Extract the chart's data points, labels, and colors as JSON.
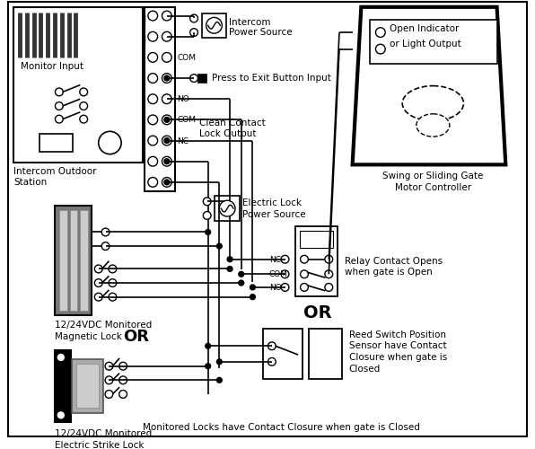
{
  "bg_color": "#ffffff",
  "labels": {
    "monitor_input": "Monitor Input",
    "intercom_outdoor_1": "Intercom Outdoor",
    "intercom_outdoor_2": "Station",
    "intercom_power_1": "Intercom",
    "intercom_power_2": "Power Source",
    "press_exit": "Press to Exit Button Input",
    "clean_contact_1": "Clean Contact",
    "clean_contact_2": "Lock Output",
    "electric_lock_1": "Electric Lock",
    "electric_lock_2": "Power Source",
    "magnetic_lock_1": "12/24VDC Monitored",
    "magnetic_lock_2": "Magnetic Lock",
    "or1": "OR",
    "electric_strike_1": "12/24VDC Monitored",
    "electric_strike_2": "Electric Strike Lock",
    "swing_gate_1": "Swing or Sliding Gate",
    "swing_gate_2": "Motor Controller",
    "open_ind_1": "Open Indicator",
    "open_ind_2": "or Light Output",
    "relay_1": "Relay Contact Opens",
    "relay_2": "when gate is Open",
    "or2": "OR",
    "reed_1": "Reed Switch Position",
    "reed_2": "Sensor have Contact",
    "reed_3": "Closure when gate is",
    "reed_4": "Closed",
    "nc_lbl": "NC",
    "com_lbl": "COM",
    "no_lbl": "NO",
    "footer": "Monitored Locks have Contact Closure when gate is Closed"
  }
}
